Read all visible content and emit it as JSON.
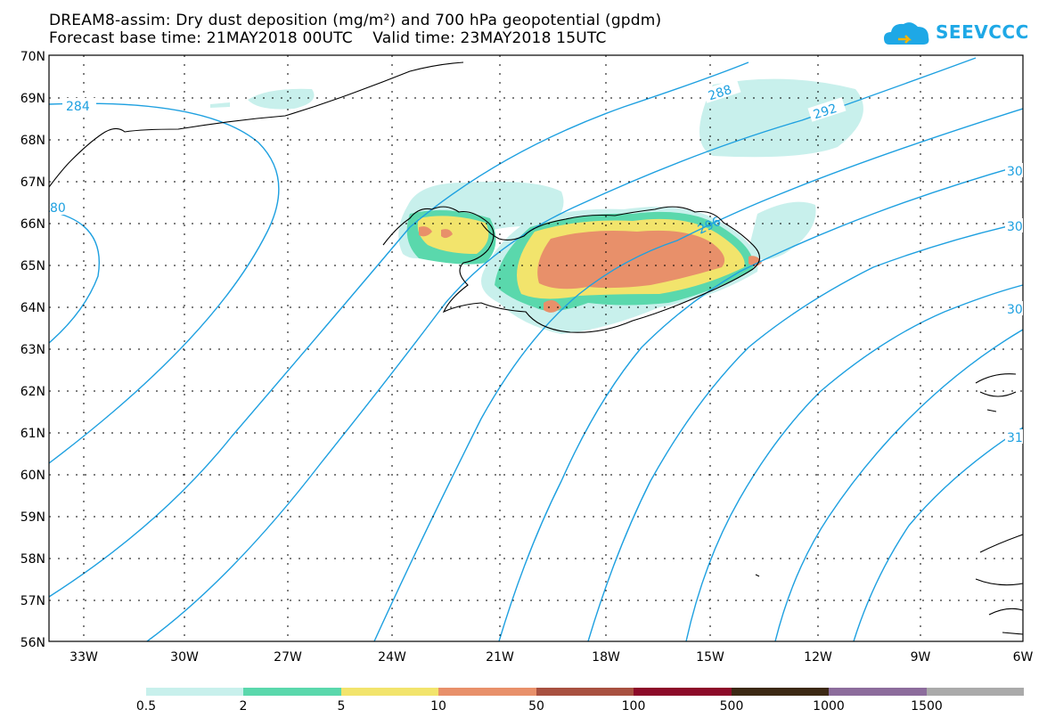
{
  "title": {
    "line1": "DREAM8-assim: Dry dust deposition (mg/m²) and 700 hPa geopotential (gpdm)",
    "line2": "Forecast base time: 21MAY2018 00UTC    Valid time: 23MAY2018 15UTC"
  },
  "logo": {
    "text": "SEEVCCC",
    "icon": "cloud-logo-icon",
    "color": "#1ea8e6"
  },
  "lat_labels": [
    "70N",
    "69N",
    "68N",
    "67N",
    "66N",
    "65N",
    "64N",
    "63N",
    "62N",
    "61N",
    "60N",
    "59N",
    "58N",
    "57N",
    "56N"
  ],
  "lon_labels": [
    "33W",
    "30W",
    "27W",
    "24W",
    "21W",
    "18W",
    "15W",
    "12W",
    "9W",
    "6W"
  ],
  "contour_labels": [
    "284",
    "288",
    "292",
    "296",
    "80",
    "30",
    "30",
    "30",
    "31"
  ],
  "legend": {
    "labels": [
      "0.5",
      "2",
      "5",
      "10",
      "50",
      "100",
      "500",
      "1000",
      "1500"
    ],
    "colors": [
      "#c8f0ec",
      "#5ad8ac",
      "#f2e46c",
      "#e8906a",
      "#a85040",
      "#8c0a28",
      "#3c2814",
      "#8c6c9c",
      "#aaaaaa"
    ]
  },
  "colors": {
    "contour": "#1ea0e0",
    "land_border": "#000000"
  }
}
